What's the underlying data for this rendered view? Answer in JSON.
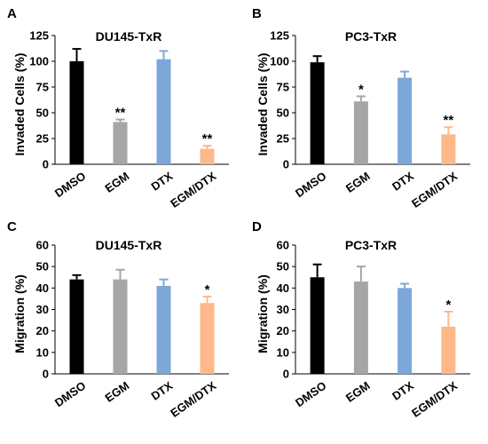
{
  "figure_colors": {
    "DMSO": "#000000",
    "EGM": "#a6a6a6",
    "DTX": "#7da7d9",
    "EGM/DTX": "#fdb98a"
  },
  "chart_data": [
    {
      "panel": "A",
      "type": "bar",
      "title": "DU145-TxR",
      "ylabel": "Invaded Cells (%)",
      "xlabel": "",
      "categories": [
        "DMSO",
        "EGM",
        "DTX",
        "EGM/DTX"
      ],
      "values": [
        100,
        41,
        102,
        15
      ],
      "errors": [
        12,
        2.5,
        8,
        3
      ],
      "significance": [
        "",
        "**",
        "",
        "**"
      ],
      "ylim": [
        0,
        125
      ],
      "yticks": [
        0,
        25,
        50,
        75,
        100,
        125
      ],
      "grid": false
    },
    {
      "panel": "B",
      "type": "bar",
      "title": "PC3-TxR",
      "ylabel": "Invaded Cells (%)",
      "xlabel": "",
      "categories": [
        "DMSO",
        "EGM",
        "DTX",
        "EGM/DTX"
      ],
      "values": [
        99,
        61,
        84,
        29
      ],
      "errors": [
        6,
        5,
        6,
        7
      ],
      "significance": [
        "",
        "*",
        "",
        "**"
      ],
      "ylim": [
        0,
        125
      ],
      "yticks": [
        0,
        25,
        50,
        75,
        100,
        125
      ],
      "grid": false
    },
    {
      "panel": "C",
      "type": "bar",
      "title": "DU145-TxR",
      "ylabel": "Migration (%)",
      "xlabel": "",
      "categories": [
        "DMSO",
        "EGM",
        "DTX",
        "EGM/DTX"
      ],
      "values": [
        44,
        44,
        41,
        33
      ],
      "errors": [
        2,
        4.5,
        3,
        3
      ],
      "significance": [
        "",
        "",
        "",
        "*"
      ],
      "ylim": [
        0,
        60
      ],
      "yticks": [
        0,
        10,
        20,
        30,
        40,
        50,
        60
      ],
      "grid": false
    },
    {
      "panel": "D",
      "type": "bar",
      "title": "PC3-TxR",
      "ylabel": "Migration (%)",
      "xlabel": "",
      "categories": [
        "DMSO",
        "EGM",
        "DTX",
        "EGM/DTX"
      ],
      "values": [
        45,
        43,
        40,
        22
      ],
      "errors": [
        6,
        7,
        2,
        7
      ],
      "significance": [
        "",
        "",
        "",
        "*"
      ],
      "ylim": [
        0,
        60
      ],
      "yticks": [
        0,
        10,
        20,
        30,
        40,
        50,
        60
      ],
      "grid": false
    }
  ]
}
